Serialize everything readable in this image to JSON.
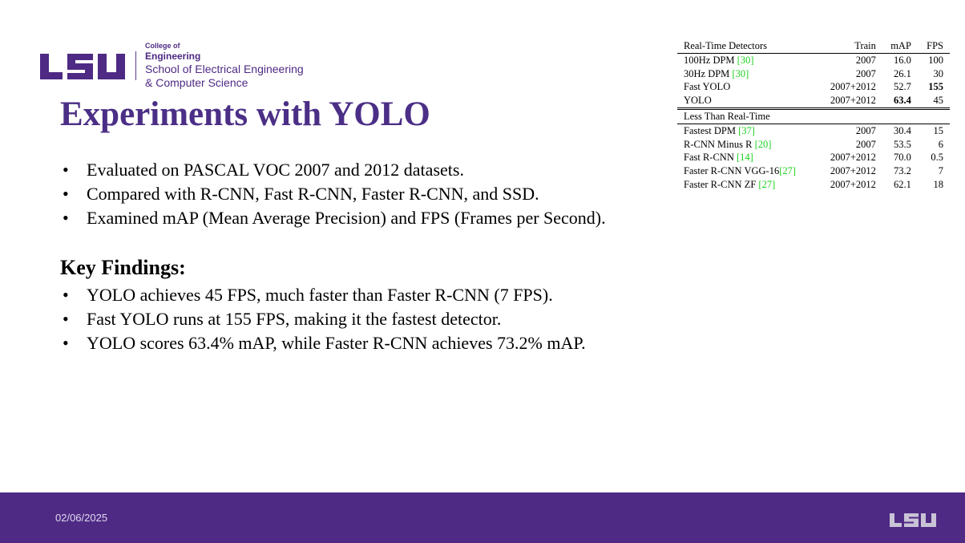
{
  "logo": {
    "brand": "LSU",
    "college": "College of",
    "engineering": "Engineering",
    "school": "School of Electrical Engineering",
    "cs": "& Computer Science",
    "color": "#4e2a84"
  },
  "title": "Experiments with YOLO",
  "bullets": [
    "Evaluated on PASCAL VOC 2007 and 2012 datasets.",
    "Compared with R-CNN, Fast R-CNN, Faster R-CNN, and SSD.",
    "Examined mAP (Mean Average Precision) and FPS (Frames per Second)."
  ],
  "key_findings": {
    "heading": "Key Findings:",
    "items": [
      "YOLO achieves 45 FPS, much faster than Faster R-CNN (7 FPS).",
      "Fast YOLO runs at 155 FPS, making it the fastest detector.",
      "YOLO scores 63.4% mAP, while Faster R-CNN achieves 73.2% mAP."
    ]
  },
  "table": {
    "header": {
      "name": "Real-Time Detectors",
      "train": "Train",
      "map": "mAP",
      "fps": "FPS"
    },
    "realtime": [
      {
        "name": "100Hz DPM ",
        "cite": "[30]",
        "train": "2007",
        "map": "16.0",
        "fps": "100"
      },
      {
        "name": "30Hz DPM ",
        "cite": "[30]",
        "train": "2007",
        "map": "26.1",
        "fps": "30"
      },
      {
        "name": "Fast YOLO",
        "cite": "",
        "train": "2007+2012",
        "map": "52.7",
        "fps": "155"
      },
      {
        "name": "YOLO",
        "cite": "",
        "train": "2007+2012",
        "map": "63.4",
        "fps": "45"
      }
    ],
    "section2": "Less Than Real-Time",
    "slower": [
      {
        "name": "Fastest DPM ",
        "cite": "[37]",
        "train": "2007",
        "map": "30.4",
        "fps": "15"
      },
      {
        "name": "R-CNN Minus R ",
        "cite": "[20]",
        "train": "2007",
        "map": "53.5",
        "fps": "6"
      },
      {
        "name": "Fast R-CNN ",
        "cite": "[14]",
        "train": "2007+2012",
        "map": "70.0",
        "fps": "0.5"
      },
      {
        "name": "Faster R-CNN VGG-16",
        "cite": "[27]",
        "train": "2007+2012",
        "map": "73.2",
        "fps": "7"
      },
      {
        "name": "Faster R-CNN ZF ",
        "cite": "[27]",
        "train": "2007+2012",
        "map": "62.1",
        "fps": "18"
      }
    ],
    "cite_color": "#1dd11d"
  },
  "footer": {
    "date": "02/06/2025",
    "logo": "LSU",
    "color": "#4e2a84"
  }
}
